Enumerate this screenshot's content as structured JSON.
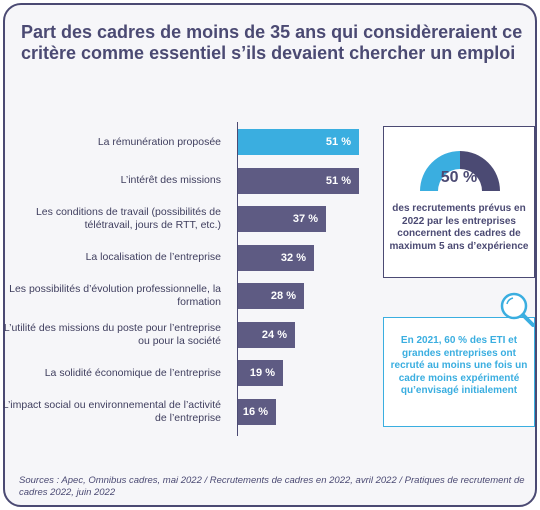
{
  "title": "Part des cadres de moins de 35 ans qui considèreraient ce critère comme essentiel s’ils devaient chercher un emploi",
  "chart_data": {
    "type": "bar",
    "orientation": "horizontal",
    "categories": [
      "La rémunération proposée",
      "L’intérêt des missions",
      "Les conditions de travail (possibilités de télétravail, jours de RTT, etc.)",
      "La localisation de l’entreprise",
      "Les possibilités d’évolution professionnelle, la formation",
      "L’utilité des missions du poste pour l’entreprise ou pour la société",
      "La solidité économique de l’entreprise",
      "L’impact social ou environnemental de l’activité de l’entreprise"
    ],
    "values": [
      51,
      51,
      37,
      32,
      28,
      24,
      19,
      16
    ],
    "value_labels": [
      "51 %",
      "51 %",
      "37 %",
      "32 %",
      "28 %",
      "24 %",
      "19 %",
      "16 %"
    ],
    "highlight_index": 0,
    "xlim": [
      0,
      51
    ],
    "colors": {
      "bar": "#5e5b83",
      "highlight": "#3aaee0"
    }
  },
  "callout_1": {
    "percent": "50 %",
    "gauge_value": 0.5,
    "text": "des recrutements prévus en 2022 par les entreprises concernent des cadres de maximum 5 ans d’expérience",
    "colors": {
      "light": "#3aaee0",
      "dark": "#4b4a73"
    }
  },
  "callout_2": {
    "icon": "magnifier-icon",
    "text": "En 2021, 60 % des ETI et grandes entreprises ont recruté au moins une fois un cadre moins expérimenté qu’envisagé initialement"
  },
  "sources": "Sources : Apec, Omnibus cadres, mai 2022 / Recrutements de cadres en 2022, avril 2022 / Pratiques de recrutement de cadres 2022, juin 2022"
}
